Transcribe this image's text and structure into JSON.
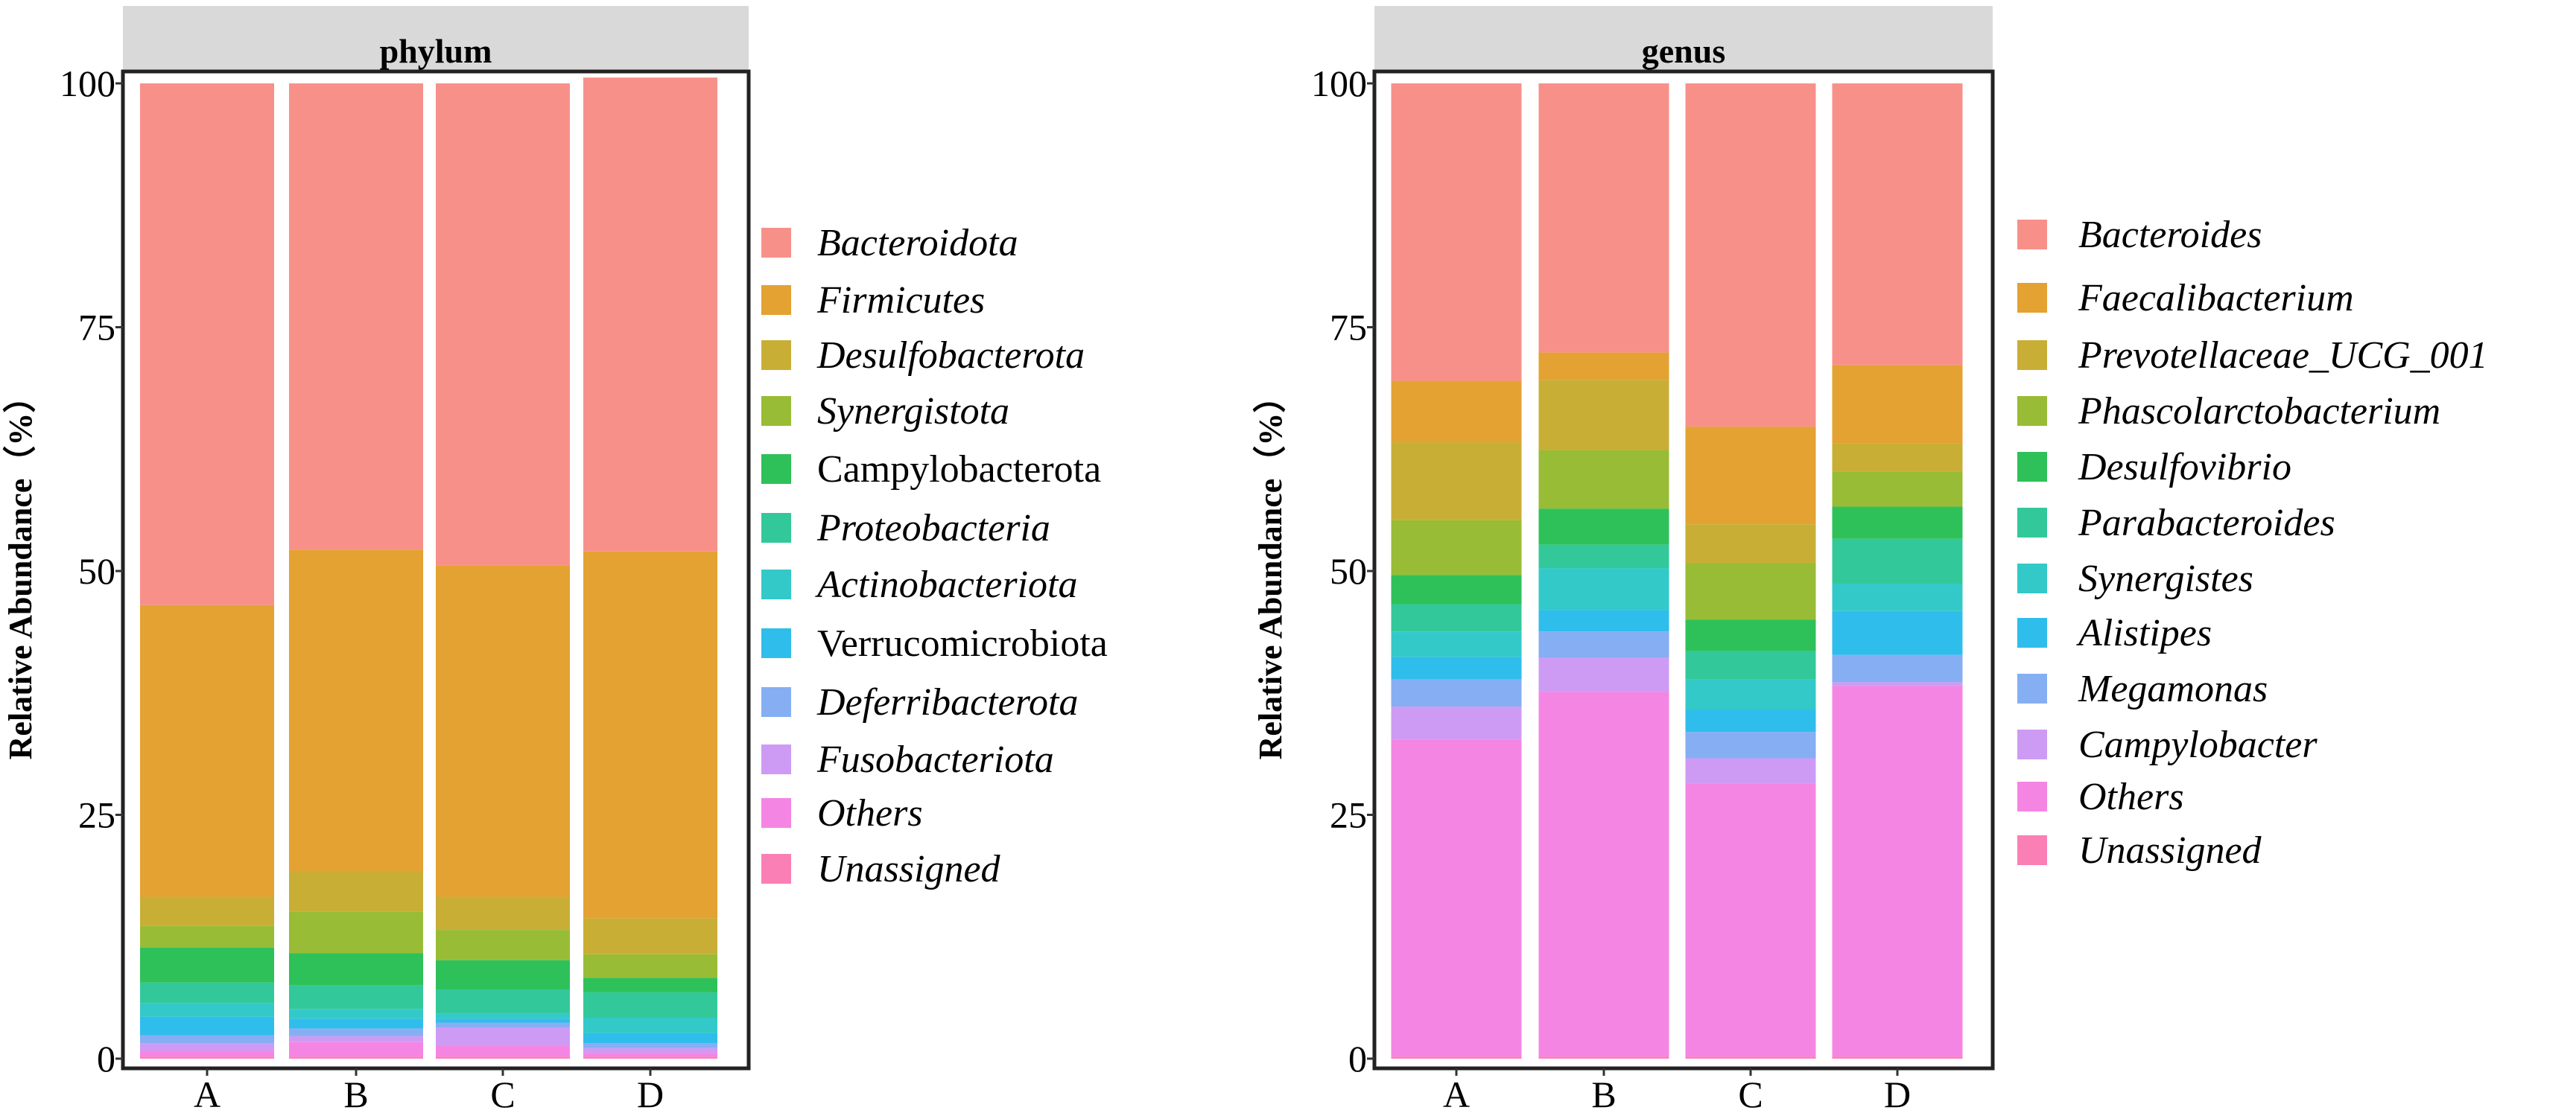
{
  "chart_data": [
    {
      "type": "bar",
      "stacked": true,
      "title": "phylum",
      "xlabel": "",
      "ylabel": "Relative Abundance（%）",
      "ylim": [
        0,
        100
      ],
      "yticks": [
        "0",
        "25",
        "50",
        "75",
        "100"
      ],
      "categories": [
        "A",
        "B",
        "C",
        "D"
      ],
      "series": [
        {
          "name": "Bacteroidota",
          "italic": true,
          "color": "#F8908A",
          "values": [
            53.5,
            47.8,
            49.4,
            48.6
          ]
        },
        {
          "name": "Firmicutes",
          "italic": true,
          "color": "#E3A232",
          "values": [
            29.9,
            33.0,
            34.0,
            37.6
          ]
        },
        {
          "name": "Desulfobacterota",
          "italic": true,
          "color": "#C8AE35",
          "values": [
            3.0,
            4.1,
            3.4,
            3.7
          ]
        },
        {
          "name": "Synergistota",
          "italic": true,
          "color": "#98BC35",
          "values": [
            2.2,
            4.3,
            3.1,
            2.4
          ]
        },
        {
          "name": "Campylobacterota",
          "italic": false,
          "color": "#2EC15A",
          "values": [
            3.6,
            3.3,
            3.0,
            1.5
          ]
        },
        {
          "name": "Proteobacteria",
          "italic": true,
          "color": "#33C89A",
          "values": [
            2.1,
            2.4,
            2.5,
            2.6
          ]
        },
        {
          "name": "Actinobacteriota",
          "italic": true,
          "color": "#33C9C8",
          "values": [
            1.4,
            1.0,
            0.5,
            1.6
          ]
        },
        {
          "name": "Verrucomicrobiota",
          "italic": false,
          "color": "#2FBDEC",
          "values": [
            1.9,
            1.0,
            0.4,
            1.0
          ]
        },
        {
          "name": "Deferribacterota",
          "italic": true,
          "color": "#86AEF3",
          "values": [
            0.8,
            0.8,
            0.5,
            0.5
          ]
        },
        {
          "name": "Fusobacteriota",
          "italic": true,
          "color": "#CE9BF4",
          "values": [
            0.8,
            0.6,
            1.9,
            0.5
          ]
        },
        {
          "name": "Others",
          "italic": true,
          "color": "#F585E3",
          "values": [
            0.6,
            1.5,
            1.1,
            0.4
          ]
        },
        {
          "name": "Unassigned",
          "italic": true,
          "color": "#FA7FB4",
          "values": [
            0.2,
            0.2,
            0.2,
            0.2
          ]
        }
      ]
    },
    {
      "type": "bar",
      "stacked": true,
      "title": "genus",
      "xlabel": "",
      "ylabel": "Relative Abundance（%）",
      "ylim": [
        0,
        100
      ],
      "yticks": [
        "0",
        "25",
        "50",
        "75",
        "100"
      ],
      "categories": [
        "A",
        "B",
        "C",
        "D"
      ],
      "series": [
        {
          "name": "Bacteroides",
          "italic": true,
          "color": "#F8908A",
          "values": [
            30.5,
            27.6,
            35.2,
            28.9
          ]
        },
        {
          "name": "Faecalibacterium",
          "italic": true,
          "color": "#E3A232",
          "values": [
            6.3,
            2.8,
            10.0,
            8.0
          ]
        },
        {
          "name": "Prevotellaceae_UCG_001",
          "italic": true,
          "color": "#C8AE35",
          "values": [
            8.0,
            7.2,
            4.0,
            2.9
          ]
        },
        {
          "name": "Phascolarctobacterium",
          "italic": true,
          "color": "#98BC35",
          "values": [
            5.6,
            6.0,
            5.8,
            3.6
          ]
        },
        {
          "name": "Desulfovibrio",
          "italic": true,
          "color": "#2EC15A",
          "values": [
            3.0,
            3.7,
            3.2,
            3.3
          ]
        },
        {
          "name": "Parabacteroides",
          "italic": true,
          "color": "#33C89A",
          "values": [
            2.8,
            2.4,
            2.9,
            4.6
          ]
        },
        {
          "name": "Synergistes",
          "italic": true,
          "color": "#33C9C8",
          "values": [
            2.6,
            4.3,
            3.1,
            2.8
          ]
        },
        {
          "name": "Alistipes",
          "italic": true,
          "color": "#2FBDEC",
          "values": [
            2.3,
            2.2,
            2.3,
            4.5
          ]
        },
        {
          "name": "Megamonas",
          "italic": true,
          "color": "#86AEF3",
          "values": [
            2.8,
            2.7,
            2.7,
            2.8
          ]
        },
        {
          "name": "Campylobacter",
          "italic": true,
          "color": "#CE9BF4",
          "values": [
            3.4,
            3.5,
            2.6,
            0.4
          ]
        },
        {
          "name": "Others",
          "italic": true,
          "color": "#F585E3",
          "values": [
            32.5,
            37.4,
            28.0,
            38.0
          ]
        },
        {
          "name": "Unassigned",
          "italic": true,
          "color": "#FA7FB4",
          "values": [
            0.2,
            0.2,
            0.2,
            0.2
          ]
        }
      ]
    }
  ]
}
